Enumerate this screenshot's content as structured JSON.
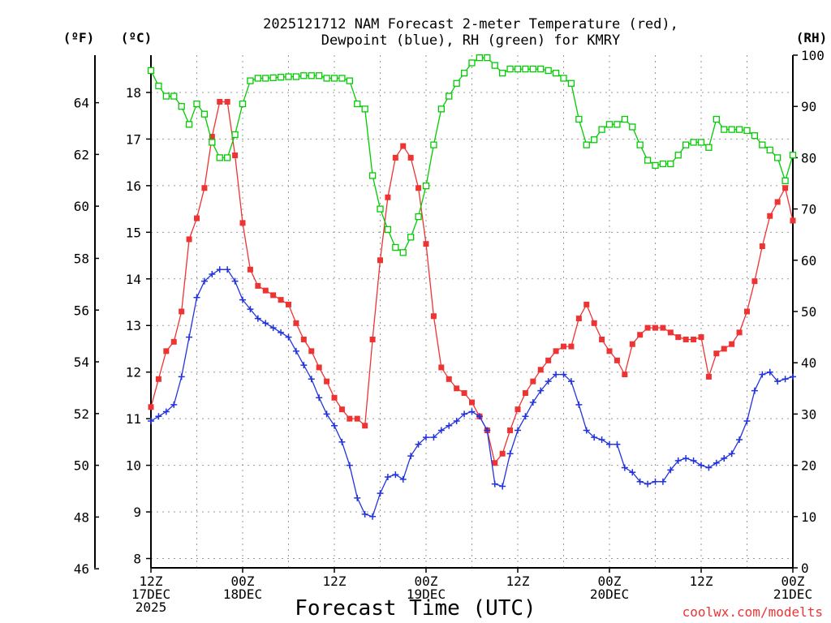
{
  "chart_data": {
    "type": "line",
    "title_line1": "2025121712 NAM Forecast 2-meter Temperature (red),",
    "title_line2": "Dewpoint (blue), RH (green) for KMRY",
    "xlabel": "Forecast Time (UTC)",
    "credit": "coolwx.com/modelts",
    "unit_f": "(ºF)",
    "unit_c": "(ºC)",
    "unit_rh": "(RH)",
    "x_range_hours": [
      0,
      84
    ],
    "c_range": [
      7.8,
      18.8
    ],
    "rh_range": [
      0,
      100
    ],
    "colors": {
      "temperature": "#ee3333",
      "dewpoint": "#2233dd",
      "rh": "#00cc00"
    },
    "f_ticks": [
      {
        "label": "46",
        "c": 7.78
      },
      {
        "label": "48",
        "c": 8.89
      },
      {
        "label": "50",
        "c": 10.0
      },
      {
        "label": "52",
        "c": 11.11
      },
      {
        "label": "54",
        "c": 12.22
      },
      {
        "label": "56",
        "c": 13.33
      },
      {
        "label": "58",
        "c": 14.44
      },
      {
        "label": "60",
        "c": 15.56
      },
      {
        "label": "62",
        "c": 16.67
      },
      {
        "label": "64",
        "c": 17.78
      }
    ],
    "c_ticks": [
      "8",
      "9",
      "10",
      "11",
      "12",
      "13",
      "14",
      "15",
      "16",
      "17",
      "18"
    ],
    "rh_ticks": [
      "0",
      "10",
      "20",
      "30",
      "40",
      "50",
      "60",
      "70",
      "80",
      "90",
      "100"
    ],
    "x_ticks": [
      {
        "hour": 0,
        "lines": [
          "12Z",
          "17DEC",
          "2025"
        ]
      },
      {
        "hour": 12,
        "lines": [
          "00Z",
          "18DEC"
        ]
      },
      {
        "hour": 24,
        "lines": [
          "12Z"
        ]
      },
      {
        "hour": 36,
        "lines": [
          "00Z",
          "19DEC"
        ]
      },
      {
        "hour": 48,
        "lines": [
          "12Z"
        ]
      },
      {
        "hour": 60,
        "lines": [
          "00Z",
          "20DEC"
        ]
      },
      {
        "hour": 72,
        "lines": [
          "12Z"
        ]
      },
      {
        "hour": 84,
        "lines": [
          "00Z",
          "21DEC"
        ]
      }
    ],
    "series": [
      {
        "name": "Temperature",
        "unit": "C",
        "values": [
          [
            0,
            11.25
          ],
          [
            1,
            11.85
          ],
          [
            2,
            12.45
          ],
          [
            3,
            12.65
          ],
          [
            4,
            13.3
          ],
          [
            5,
            14.85
          ],
          [
            6,
            15.3
          ],
          [
            7,
            15.95
          ],
          [
            8,
            17.05
          ],
          [
            9,
            17.8
          ],
          [
            10,
            17.8
          ],
          [
            11,
            16.65
          ],
          [
            12,
            15.2
          ],
          [
            13,
            14.2
          ],
          [
            14,
            13.85
          ],
          [
            15,
            13.75
          ],
          [
            16,
            13.65
          ],
          [
            17,
            13.55
          ],
          [
            18,
            13.45
          ],
          [
            19,
            13.05
          ],
          [
            20,
            12.7
          ],
          [
            21,
            12.45
          ],
          [
            22,
            12.1
          ],
          [
            23,
            11.8
          ],
          [
            24,
            11.45
          ],
          [
            25,
            11.2
          ],
          [
            26,
            11.0
          ],
          [
            27,
            11.0
          ],
          [
            28,
            10.85
          ],
          [
            29,
            12.7
          ],
          [
            30,
            14.4
          ],
          [
            31,
            15.75
          ],
          [
            32,
            16.6
          ],
          [
            33,
            16.85
          ],
          [
            34,
            16.6
          ],
          [
            35,
            15.95
          ],
          [
            36,
            14.75
          ],
          [
            37,
            13.2
          ],
          [
            38,
            12.1
          ],
          [
            39,
            11.85
          ],
          [
            40,
            11.65
          ],
          [
            41,
            11.55
          ],
          [
            42,
            11.35
          ],
          [
            43,
            11.05
          ],
          [
            44,
            10.75
          ],
          [
            45,
            10.05
          ],
          [
            46,
            10.25
          ],
          [
            47,
            10.75
          ],
          [
            48,
            11.2
          ],
          [
            49,
            11.55
          ],
          [
            50,
            11.8
          ],
          [
            51,
            12.05
          ],
          [
            52,
            12.25
          ],
          [
            53,
            12.45
          ],
          [
            54,
            12.55
          ],
          [
            55,
            12.55
          ],
          [
            56,
            13.15
          ],
          [
            57,
            13.45
          ],
          [
            58,
            13.05
          ],
          [
            59,
            12.7
          ],
          [
            60,
            12.45
          ],
          [
            61,
            12.25
          ],
          [
            62,
            11.95
          ],
          [
            63,
            12.6
          ],
          [
            64,
            12.8
          ],
          [
            65,
            12.95
          ],
          [
            66,
            12.95
          ],
          [
            67,
            12.95
          ],
          [
            68,
            12.85
          ],
          [
            69,
            12.75
          ],
          [
            70,
            12.7
          ],
          [
            71,
            12.7
          ],
          [
            72,
            12.75
          ],
          [
            73,
            11.9
          ],
          [
            74,
            12.4
          ],
          [
            75,
            12.5
          ],
          [
            76,
            12.6
          ],
          [
            77,
            12.85
          ],
          [
            78,
            13.3
          ],
          [
            79,
            13.95
          ],
          [
            80,
            14.7
          ],
          [
            81,
            15.35
          ],
          [
            82,
            15.65
          ],
          [
            83,
            15.95
          ],
          [
            84,
            15.25
          ]
        ]
      },
      {
        "name": "Dewpoint",
        "unit": "C",
        "values": [
          [
            0,
            10.95
          ],
          [
            1,
            11.05
          ],
          [
            2,
            11.15
          ],
          [
            3,
            11.3
          ],
          [
            4,
            11.9
          ],
          [
            5,
            12.75
          ],
          [
            6,
            13.6
          ],
          [
            7,
            13.95
          ],
          [
            8,
            14.1
          ],
          [
            9,
            14.2
          ],
          [
            10,
            14.2
          ],
          [
            11,
            13.95
          ],
          [
            12,
            13.55
          ],
          [
            13,
            13.35
          ],
          [
            14,
            13.15
          ],
          [
            15,
            13.05
          ],
          [
            16,
            12.95
          ],
          [
            17,
            12.85
          ],
          [
            18,
            12.75
          ],
          [
            19,
            12.45
          ],
          [
            20,
            12.15
          ],
          [
            21,
            11.85
          ],
          [
            22,
            11.45
          ],
          [
            23,
            11.1
          ],
          [
            24,
            10.85
          ],
          [
            25,
            10.5
          ],
          [
            26,
            10.0
          ],
          [
            27,
            9.3
          ],
          [
            28,
            8.95
          ],
          [
            29,
            8.9
          ],
          [
            30,
            9.4
          ],
          [
            31,
            9.75
          ],
          [
            32,
            9.8
          ],
          [
            33,
            9.7
          ],
          [
            34,
            10.2
          ],
          [
            35,
            10.45
          ],
          [
            36,
            10.6
          ],
          [
            37,
            10.6
          ],
          [
            38,
            10.75
          ],
          [
            39,
            10.85
          ],
          [
            40,
            10.95
          ],
          [
            41,
            11.1
          ],
          [
            42,
            11.15
          ],
          [
            43,
            11.05
          ],
          [
            44,
            10.75
          ],
          [
            45,
            9.6
          ],
          [
            46,
            9.55
          ],
          [
            47,
            10.25
          ],
          [
            48,
            10.75
          ],
          [
            49,
            11.05
          ],
          [
            50,
            11.35
          ],
          [
            51,
            11.6
          ],
          [
            52,
            11.8
          ],
          [
            53,
            11.95
          ],
          [
            54,
            11.95
          ],
          [
            55,
            11.8
          ],
          [
            56,
            11.3
          ],
          [
            57,
            10.75
          ],
          [
            58,
            10.6
          ],
          [
            59,
            10.55
          ],
          [
            60,
            10.45
          ],
          [
            61,
            10.45
          ],
          [
            62,
            9.95
          ],
          [
            63,
            9.85
          ],
          [
            64,
            9.65
          ],
          [
            65,
            9.6
          ],
          [
            66,
            9.65
          ],
          [
            67,
            9.65
          ],
          [
            68,
            9.9
          ],
          [
            69,
            10.1
          ],
          [
            70,
            10.15
          ],
          [
            71,
            10.1
          ],
          [
            72,
            10.0
          ],
          [
            73,
            9.95
          ],
          [
            74,
            10.05
          ],
          [
            75,
            10.15
          ],
          [
            76,
            10.25
          ],
          [
            77,
            10.55
          ],
          [
            78,
            10.95
          ],
          [
            79,
            11.6
          ],
          [
            80,
            11.95
          ],
          [
            81,
            12.0
          ],
          [
            82,
            11.8
          ],
          [
            83,
            11.85
          ],
          [
            84,
            11.9
          ]
        ]
      },
      {
        "name": "RH",
        "unit": "%",
        "values": [
          [
            0,
            97
          ],
          [
            1,
            94
          ],
          [
            2,
            92
          ],
          [
            3,
            92
          ],
          [
            4,
            90
          ],
          [
            5,
            86.5
          ],
          [
            6,
            90.5
          ],
          [
            7,
            88.5
          ],
          [
            8,
            83
          ],
          [
            9,
            80
          ],
          [
            10,
            80
          ],
          [
            11,
            84.5
          ],
          [
            12,
            90.5
          ],
          [
            13,
            95
          ],
          [
            14,
            95.5
          ],
          [
            15,
            95.5
          ],
          [
            16,
            95.6
          ],
          [
            17,
            95.7
          ],
          [
            18,
            95.8
          ],
          [
            19,
            95.8
          ],
          [
            20,
            96
          ],
          [
            21,
            96
          ],
          [
            22,
            96
          ],
          [
            23,
            95.5
          ],
          [
            24,
            95.5
          ],
          [
            25,
            95.5
          ],
          [
            26,
            95
          ],
          [
            27,
            90.5
          ],
          [
            28,
            89.5
          ],
          [
            29,
            76.5
          ],
          [
            30,
            70
          ],
          [
            31,
            66
          ],
          [
            32,
            62.5
          ],
          [
            33,
            61.5
          ],
          [
            34,
            64.5
          ],
          [
            35,
            68.5
          ],
          [
            36,
            74.5
          ],
          [
            37,
            82.5
          ],
          [
            38,
            89.5
          ],
          [
            39,
            92
          ],
          [
            40,
            94.5
          ],
          [
            41,
            96.5
          ],
          [
            42,
            98.5
          ],
          [
            43,
            99.5
          ],
          [
            44,
            99.5
          ],
          [
            45,
            98
          ],
          [
            46,
            96.5
          ],
          [
            47,
            97.3
          ],
          [
            48,
            97.3
          ],
          [
            49,
            97.3
          ],
          [
            50,
            97.3
          ],
          [
            51,
            97.3
          ],
          [
            52,
            97
          ],
          [
            53,
            96.5
          ],
          [
            54,
            95.5
          ],
          [
            55,
            94.5
          ],
          [
            56,
            87.5
          ],
          [
            57,
            82.5
          ],
          [
            58,
            83.5
          ],
          [
            59,
            85.5
          ],
          [
            60,
            86.5
          ],
          [
            61,
            86.5
          ],
          [
            62,
            87.5
          ],
          [
            63,
            86
          ],
          [
            64,
            82.5
          ],
          [
            65,
            79.5
          ],
          [
            66,
            78.5
          ],
          [
            67,
            78.8
          ],
          [
            68,
            78.8
          ],
          [
            69,
            80.5
          ],
          [
            70,
            82.5
          ],
          [
            71,
            83
          ],
          [
            72,
            83
          ],
          [
            73,
            82
          ],
          [
            74,
            87.5
          ],
          [
            75,
            85.5
          ],
          [
            76,
            85.5
          ],
          [
            77,
            85.5
          ],
          [
            78,
            85.3
          ],
          [
            79,
            84.3
          ],
          [
            80,
            82.5
          ],
          [
            81,
            81.5
          ],
          [
            82,
            80
          ],
          [
            83,
            75.5
          ],
          [
            84,
            80.5
          ]
        ]
      }
    ]
  }
}
